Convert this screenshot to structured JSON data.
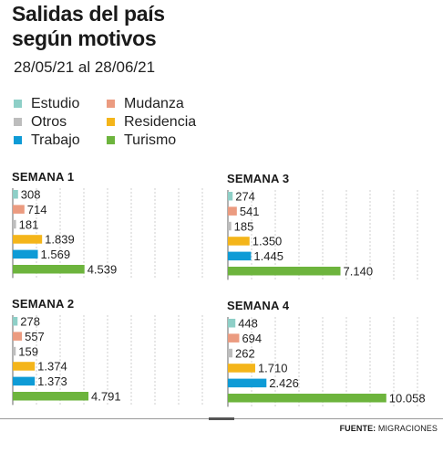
{
  "title_line1": "Salidas del país",
  "title_line2": "según motivos",
  "subtitle": "28/05/21 al 28/06/21",
  "legend": [
    {
      "label": "Estudio",
      "color": "#8ecfc7"
    },
    {
      "label": "Mudanza",
      "color": "#eb9b80"
    },
    {
      "label": "Otros",
      "color": "#bdbdbd"
    },
    {
      "label": "Residencia",
      "color": "#f4b51a"
    },
    {
      "label": "Trabajo",
      "color": "#0e9bd6"
    },
    {
      "label": "Turismo",
      "color": "#6db43d"
    }
  ],
  "source_prefix": "FUENTE:",
  "source_name": "MIGRACIONES",
  "chart_data": {
    "type": "bar",
    "orientation": "horizontal",
    "categories": [
      "Estudio",
      "Mudanza",
      "Otros",
      "Residencia",
      "Trabajo",
      "Turismo"
    ],
    "xlim": [
      0,
      11000
    ],
    "grid": true,
    "panels": [
      {
        "title": "SEMANA 1",
        "values": [
          308,
          714,
          181,
          1839,
          1569,
          4539
        ],
        "labels": [
          "308",
          "714",
          "181",
          "1.839",
          "1.569",
          "4.539"
        ]
      },
      {
        "title": "SEMANA 3",
        "values": [
          274,
          541,
          185,
          1350,
          1445,
          7140
        ],
        "labels": [
          "274",
          "541",
          "185",
          "1.350",
          "1.445",
          "7.140"
        ]
      },
      {
        "title": "SEMANA 2",
        "values": [
          278,
          557,
          159,
          1374,
          1373,
          4791
        ],
        "labels": [
          "278",
          "557",
          "159",
          "1.374",
          "1.373",
          "4.791"
        ]
      },
      {
        "title": "SEMANA 4",
        "values": [
          448,
          694,
          262,
          1710,
          2426,
          10058
        ],
        "labels": [
          "448",
          "694",
          "262",
          "1.710",
          "2.426",
          "10.058"
        ]
      }
    ]
  }
}
